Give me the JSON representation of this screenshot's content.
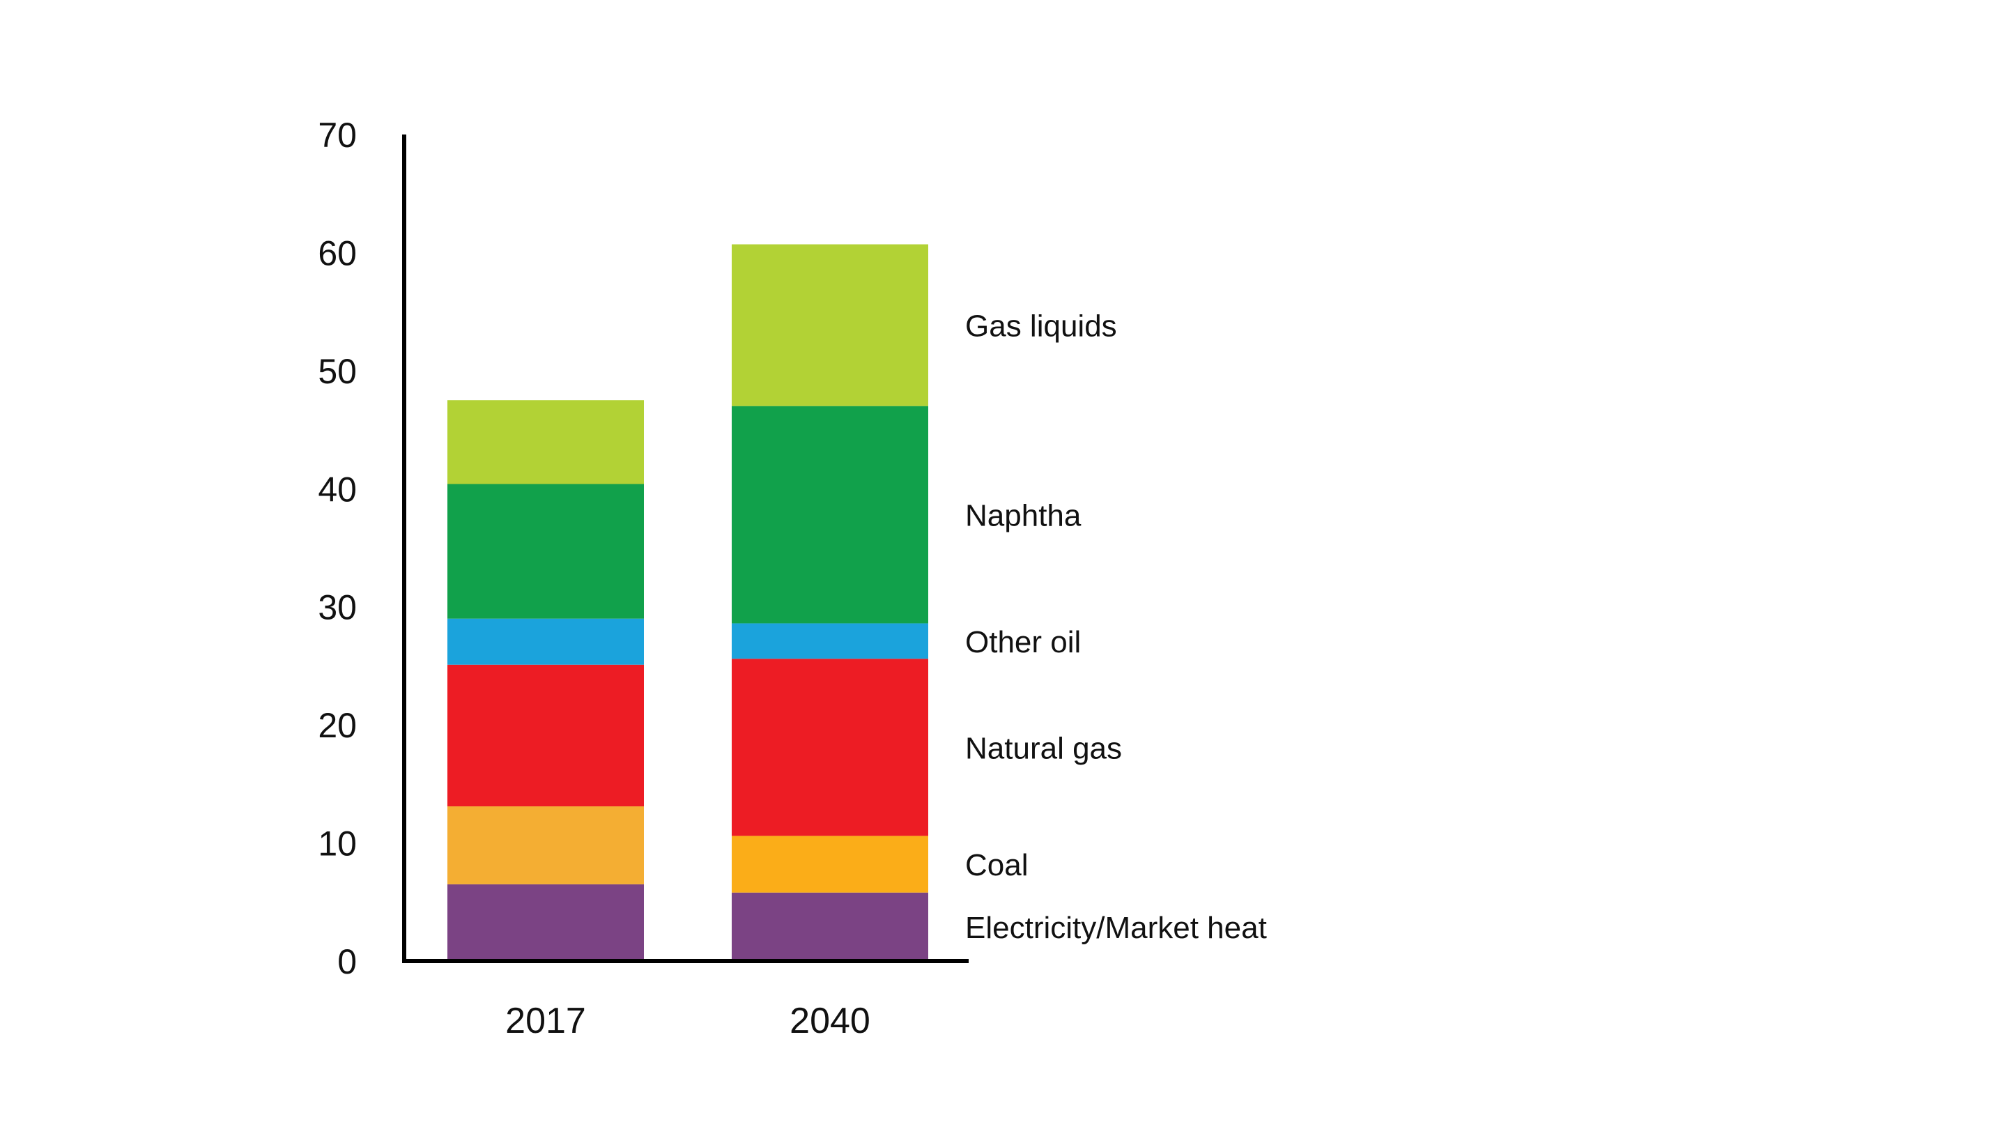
{
  "chart_data": {
    "type": "bar",
    "stacked": true,
    "title": "",
    "xlabel": "",
    "ylabel": "",
    "ylim": [
      0,
      70
    ],
    "yticks": [
      "0",
      "10",
      "20",
      "30",
      "40",
      "50",
      "60",
      "70"
    ],
    "grid": false,
    "legend": "right, inline labels",
    "categories": [
      "2017",
      "2040"
    ],
    "series": [
      {
        "name": "Electricity/Market heat",
        "color": "#7b4384",
        "values": [
          6.5,
          5.8
        ]
      },
      {
        "name": "Coal",
        "color": "#f4ae33",
        "values": [
          6.6,
          4.8
        ]
      },
      {
        "name": "Natural gas",
        "color": "#ed1c24",
        "values": [
          12.0,
          15.0
        ]
      },
      {
        "name": "Other oil",
        "color": "#1ba3dc",
        "values": [
          3.9,
          3.0
        ]
      },
      {
        "name": "Naphtha",
        "color": "#11a14b",
        "values": [
          11.4,
          18.4
        ]
      },
      {
        "name": "Gas liquids",
        "color": "#b2d235",
        "values": [
          7.1,
          13.7
        ]
      }
    ],
    "series_colors_alt": {
      "Coal": [
        "#f4ae33",
        "#fbad18"
      ]
    }
  }
}
